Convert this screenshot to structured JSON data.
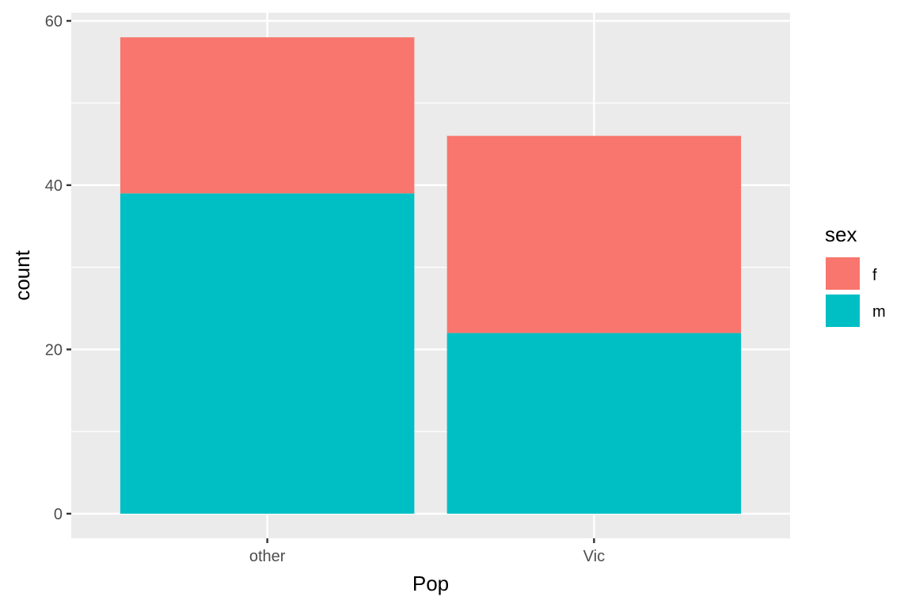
{
  "chart_data": {
    "type": "bar",
    "stacked": true,
    "categories": [
      "other",
      "Vic"
    ],
    "series": [
      {
        "name": "m",
        "values": [
          39,
          22
        ],
        "color": "#00BFC4"
      },
      {
        "name": "f",
        "values": [
          19,
          24
        ],
        "color": "#F8766D"
      }
    ],
    "xlabel": "Pop",
    "ylabel": "count",
    "ylim": [
      -3,
      61
    ],
    "yticks": [
      0,
      20,
      40,
      60
    ],
    "grid": true,
    "legend": {
      "title": "sex",
      "entries": [
        "f",
        "m"
      ],
      "placement": "right"
    }
  },
  "colors": {
    "panel_background": "#EBEBEB",
    "grid_line": "#FFFFFF",
    "f": "#F8766D",
    "m": "#00BFC4"
  }
}
